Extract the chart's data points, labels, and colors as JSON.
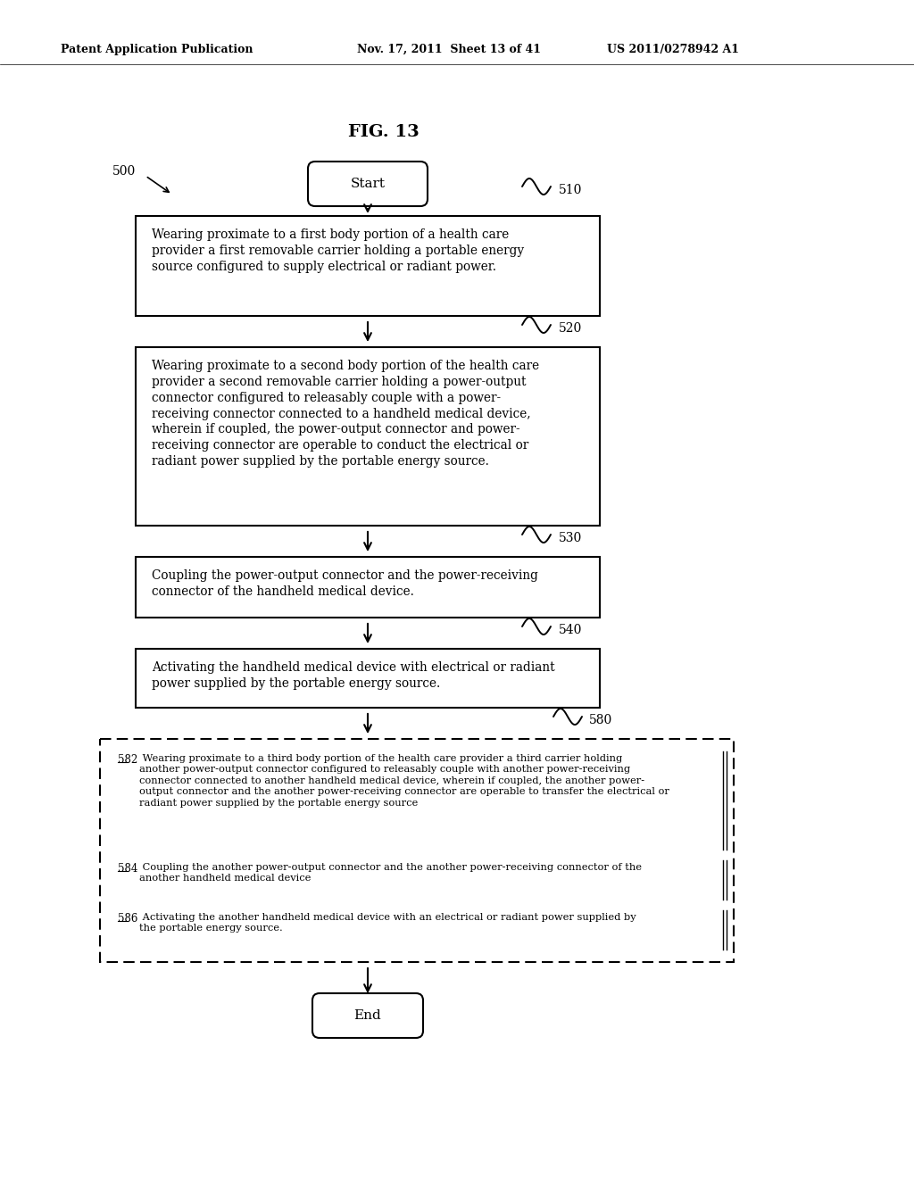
{
  "bg_color": "#ffffff",
  "header_left": "Patent Application Publication",
  "header_mid": "Nov. 17, 2011  Sheet 13 of 41",
  "header_right": "US 2011/0278942 A1",
  "fig_title": "FIG. 13",
  "label_500": "500",
  "label_510": "510",
  "label_520": "520",
  "label_530": "530",
  "label_540": "540",
  "label_580": "580",
  "start_text": "Start",
  "end_text": "End",
  "box510_text": "Wearing proximate to a first body portion of a health care\nprovider a first removable carrier holding a portable energy\nsource configured to supply electrical or radiant power.",
  "box520_text": "Wearing proximate to a second body portion of the health care\nprovider a second removable carrier holding a power-output\nconnector configured to releasably couple with a power-\nreceiving connector connected to a handheld medical device,\nwherein if coupled, the power-output connector and power-\nreceiving connector are operable to conduct the electrical or\nradiant power supplied by the portable energy source.",
  "box530_text": "Coupling the power-output connector and the power-receiving\nconnector of the handheld medical device.",
  "box540_text": "Activating the handheld medical device with electrical or radiant\npower supplied by the portable energy source.",
  "box582_label": "582",
  "box582_text": " Wearing proximate to a third body portion of the health care provider a third carrier holding\nanother power-output connector configured to releasably couple with another power-receiving\nconnector connected to another handheld medical device, wherein if coupled, the another power-\noutput connector and the another power-receiving connector are operable to transfer the electrical or\nradiant power supplied by the portable energy source",
  "box584_label": "584",
  "box584_text": " Coupling the another power-output connector and the another power-receiving connector of the\nanother handheld medical device",
  "box586_label": "586",
  "box586_text": " Activating the another handheld medical device with an electrical or radiant power supplied by\nthe portable energy source."
}
